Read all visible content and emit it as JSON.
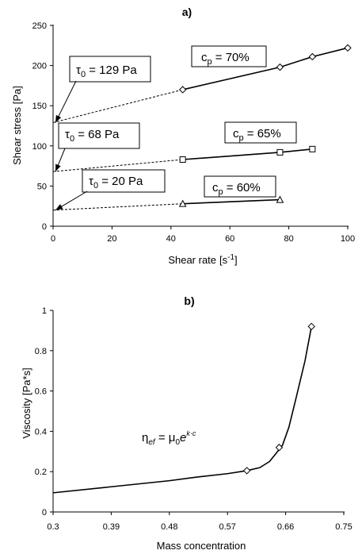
{
  "chart_data": [
    {
      "panel_label": "a)",
      "type": "scatter",
      "xlabel": "Shear rate",
      "xunit_open": "[s",
      "xunit_sup": "-1",
      "xunit_close": "]",
      "ylabel": "Shear stress  [Pa]",
      "xlim": [
        0,
        100
      ],
      "ylim": [
        0,
        250
      ],
      "xticks": [
        0,
        20,
        40,
        60,
        80,
        100
      ],
      "yticks": [
        0,
        50,
        100,
        150,
        200,
        250
      ],
      "grid": false,
      "series": [
        {
          "label_main": "c",
          "label_sub": "p",
          "label_rest": " = 70%",
          "marker": "diamond",
          "x": [
            44,
            77,
            88,
            100
          ],
          "y": [
            170,
            198,
            211,
            222
          ],
          "extrapolation": {
            "from_x": 0,
            "from_y": 129
          }
        },
        {
          "label_main": "c",
          "label_sub": "p",
          "label_rest": " = 65%",
          "marker": "square",
          "x": [
            44,
            77,
            88
          ],
          "y": [
            83,
            92,
            96
          ],
          "extrapolation": {
            "from_x": 0,
            "from_y": 68
          }
        },
        {
          "label_main": "c",
          "label_sub": "p",
          "label_rest": " = 60%",
          "marker": "triangle",
          "x": [
            44,
            77
          ],
          "y": [
            28,
            33
          ],
          "extrapolation": {
            "from_x": 0,
            "from_y": 20
          }
        }
      ],
      "annotations": [
        {
          "sym": "τ",
          "sub": "0",
          "rest": " = 129 Pa",
          "target_y": 129
        },
        {
          "sym": "τ",
          "sub": "0",
          "rest": " = 68 Pa",
          "target_y": 68
        },
        {
          "sym": "τ",
          "sub": "0",
          "rest": " = 20 Pa",
          "target_y": 20
        }
      ]
    },
    {
      "panel_label": "b)",
      "type": "line",
      "xlabel": "Mass concentration",
      "ylabel": "Viscosity  [Pa*s]",
      "xlim": [
        0.3,
        0.75
      ],
      "ylim": [
        0,
        1
      ],
      "xticks": [
        "0.3",
        "0.39",
        "0.48",
        "0.57",
        "0.66",
        "0.75"
      ],
      "yticks": [
        "0",
        "0.2",
        "0.4",
        "0.6",
        "0.8",
        "1"
      ],
      "grid": false,
      "curve_x": [
        0.3,
        0.39,
        0.48,
        0.52,
        0.57,
        0.6,
        0.62,
        0.635,
        0.645,
        0.655,
        0.665,
        0.675,
        0.69,
        0.7
      ],
      "curve_y": [
        0.095,
        0.125,
        0.155,
        0.172,
        0.19,
        0.205,
        0.22,
        0.25,
        0.29,
        0.33,
        0.42,
        0.55,
        0.75,
        0.92
      ],
      "markers_x": [
        0.6,
        0.65,
        0.7
      ],
      "markers_y": [
        0.205,
        0.32,
        0.92
      ],
      "formula": {
        "eta": "η",
        "eta_sub": "ef",
        "eq": " = μ",
        "mu_sub": "0",
        "e": "e",
        "exp": "k·c"
      }
    }
  ]
}
